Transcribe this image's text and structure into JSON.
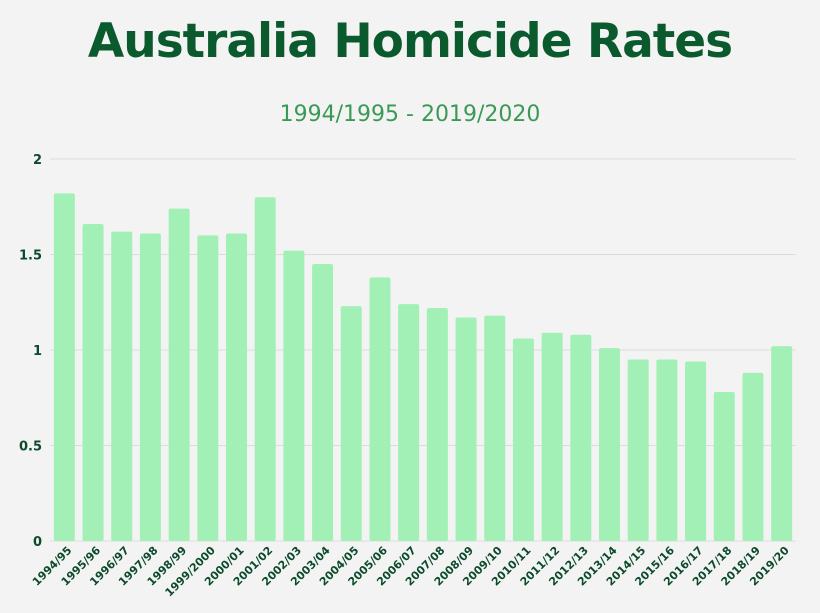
{
  "chart_data": {
    "type": "bar",
    "title": "Australia Homicide Rates",
    "subtitle": "1994/1995 - 2019/2020",
    "xlabel": "",
    "ylabel": "",
    "ylim": [
      0,
      2
    ],
    "yticks": [
      "0",
      "0.5",
      "1",
      "1.5",
      "2"
    ],
    "grid": true,
    "categories": [
      "1994/95",
      "1995/96",
      "1996/97",
      "1997/98",
      "1998/99",
      "1999/2000",
      "2000/01",
      "2001/02",
      "2002/03",
      "2003/04",
      "2004/05",
      "2005/06",
      "2006/07",
      "2007/08",
      "2008/09",
      "2009/10",
      "2010/11",
      "2011/12",
      "2012/13",
      "2013/14",
      "2014/15",
      "2015/16",
      "2016/17",
      "2017/18",
      "2018/19",
      "2019/20"
    ],
    "values": [
      1.82,
      1.66,
      1.62,
      1.61,
      1.74,
      1.6,
      1.61,
      1.8,
      1.52,
      1.45,
      1.23,
      1.38,
      1.24,
      1.22,
      1.17,
      1.18,
      1.06,
      1.09,
      1.08,
      1.01,
      0.95,
      0.95,
      0.94,
      0.78,
      0.88,
      1.02
    ],
    "colors": {
      "bar": "#a3f0b7",
      "title": "#0b5a2e",
      "subtitle": "#3a9a55",
      "axis_text": "#0b4a2a",
      "grid": "#dcdcdc"
    }
  }
}
